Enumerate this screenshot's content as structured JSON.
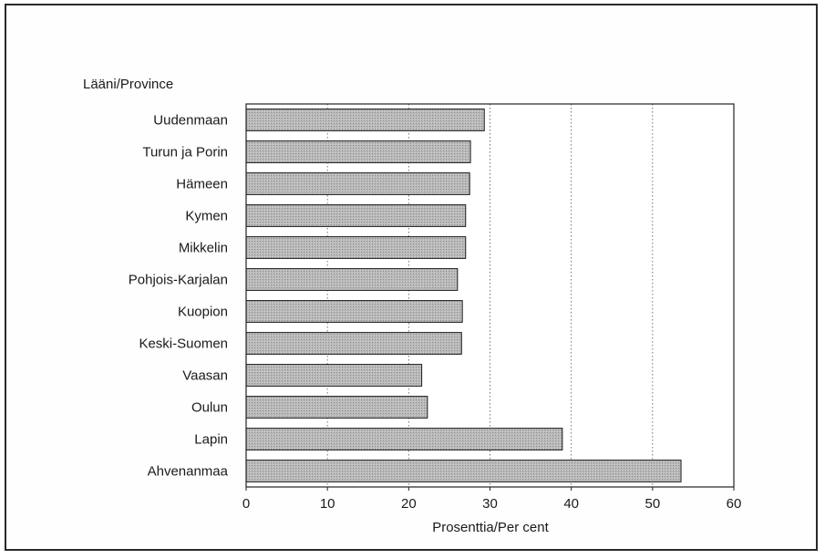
{
  "chart_data": {
    "type": "bar",
    "orientation": "horizontal",
    "title": "",
    "ylabel": "Lääni/Province",
    "xlabel": "Prosenttia/Per cent",
    "categories": [
      "Uudenmaan",
      "Turun ja Porin",
      "Hämeen",
      "Kymen",
      "Mikkelin",
      "Pohjois-Karjalan",
      "Kuopion",
      "Keski-Suomen",
      "Vaasan",
      "Oulun",
      "Lapin",
      "Ahvenanmaa"
    ],
    "values": [
      29.3,
      27.6,
      27.5,
      27.0,
      27.0,
      26.0,
      26.6,
      26.5,
      21.6,
      22.3,
      38.9,
      53.5
    ],
    "xlim": [
      0,
      60
    ],
    "xticks": [
      "0",
      "10",
      "20",
      "30",
      "40",
      "50",
      "60"
    ],
    "grid": "vertical dotted",
    "legend": "none",
    "bar_color": "#b9b9b9"
  }
}
